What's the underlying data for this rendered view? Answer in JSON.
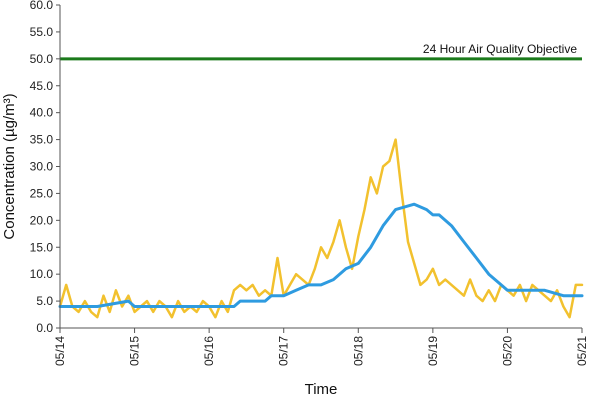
{
  "chart_data": {
    "type": "line",
    "title": "",
    "xlabel": "Time",
    "ylabel": "Concentration (µg/m³)",
    "ylim": [
      0,
      60
    ],
    "yticks": [
      "0.0",
      "5.0",
      "10.0",
      "15.0",
      "20.0",
      "25.0",
      "30.0",
      "35.0",
      "40.0",
      "45.0",
      "50.0",
      "55.0",
      "60.0"
    ],
    "xlim": [
      "05/14",
      "05/21"
    ],
    "xticks": [
      "05/14",
      "05/15",
      "05/16",
      "05/17",
      "05/18",
      "05/19",
      "05/20",
      "05/21"
    ],
    "grid": false,
    "legend": "none",
    "colors": {
      "hourly": "#F2C12E",
      "rolling": "#2E9BE0",
      "objective": "#1B7A1B",
      "axis": "#555555"
    },
    "annotation": {
      "text": "24 Hour Air Quality Objective",
      "y": 50
    },
    "objective_line": {
      "y": 50
    },
    "series": [
      {
        "x": [
          "05/14 00:00",
          "05/14 02:00",
          "05/14 04:00",
          "05/14 06:00",
          "05/14 08:00",
          "05/14 10:00",
          "05/14 12:00",
          "05/14 14:00",
          "05/14 16:00",
          "05/14 18:00",
          "05/14 20:00",
          "05/14 22:00",
          "05/15 00:00",
          "05/15 02:00",
          "05/15 04:00",
          "05/15 06:00",
          "05/15 08:00",
          "05/15 10:00",
          "05/15 12:00",
          "05/15 14:00",
          "05/15 16:00",
          "05/15 18:00",
          "05/15 20:00",
          "05/15 22:00",
          "05/16 00:00",
          "05/16 02:00",
          "05/16 04:00",
          "05/16 06:00",
          "05/16 08:00",
          "05/16 10:00",
          "05/16 12:00",
          "05/16 14:00",
          "05/16 16:00",
          "05/16 18:00",
          "05/16 20:00",
          "05/16 22:00",
          "05/17 00:00",
          "05/17 02:00",
          "05/17 04:00",
          "05/17 06:00",
          "05/17 08:00",
          "05/17 10:00",
          "05/17 12:00",
          "05/17 14:00",
          "05/17 16:00",
          "05/17 18:00",
          "05/17 20:00",
          "05/17 22:00",
          "05/18 00:00",
          "05/18 02:00",
          "05/18 04:00",
          "05/18 06:00",
          "05/18 08:00",
          "05/18 10:00",
          "05/18 12:00",
          "05/18 14:00",
          "05/18 16:00",
          "05/18 18:00",
          "05/18 20:00",
          "05/18 22:00",
          "05/19 00:00",
          "05/19 02:00",
          "05/19 04:00",
          "05/19 06:00",
          "05/19 08:00",
          "05/19 10:00",
          "05/19 12:00",
          "05/19 14:00",
          "05/19 16:00",
          "05/19 18:00",
          "05/19 20:00",
          "05/19 22:00",
          "05/20 00:00",
          "05/20 02:00",
          "05/20 04:00",
          "05/20 06:00",
          "05/20 08:00",
          "05/20 10:00",
          "05/20 12:00",
          "05/20 14:00",
          "05/20 16:00",
          "05/20 18:00",
          "05/20 20:00",
          "05/20 22:00",
          "05/21 00:00"
        ],
        "values": [
          4.0,
          8.0,
          4.0,
          3.0,
          5.0,
          3.0,
          2.0,
          6.0,
          3.0,
          7.0,
          4.0,
          6.0,
          3.0,
          4.0,
          5.0,
          3.0,
          5.0,
          4.0,
          2.0,
          5.0,
          3.0,
          4.0,
          3.0,
          5.0,
          4.0,
          2.0,
          5.0,
          3.0,
          7.0,
          8.0,
          7.0,
          8.0,
          6.0,
          7.0,
          6.0,
          13.0,
          6.0,
          8.0,
          10.0,
          9.0,
          8.0,
          11.0,
          15.0,
          13.0,
          16.0,
          20.0,
          15.0,
          11.0,
          17.0,
          22.0,
          28.0,
          25.0,
          30.0,
          31.0,
          35.0,
          25.0,
          16.0,
          12.0,
          8.0,
          9.0,
          11.0,
          8.0,
          9.0,
          8.0,
          7.0,
          6.0,
          9.0,
          6.0,
          5.0,
          7.0,
          5.0,
          8.0,
          7.0,
          6.0,
          8.0,
          5.0,
          8.0,
          7.0,
          6.0,
          5.0,
          7.0,
          4.0,
          2.0,
          8.0,
          8.0
        ]
      },
      {
        "x": [
          "05/14 00:00",
          "05/14 12:00",
          "05/14 12:00",
          "05/14 22:00",
          "05/15 00:00",
          "05/15 06:00",
          "05/15 12:00",
          "05/15 18:00",
          "05/16 00:00",
          "05/16 08:00",
          "05/16 10:00",
          "05/16 18:00",
          "05/16 20:00",
          "05/17 00:00",
          "05/17 04:00",
          "05/17 08:00",
          "05/17 12:00",
          "05/17 16:00",
          "05/17 20:00",
          "05/18 00:00",
          "05/18 04:00",
          "05/18 08:00",
          "05/18 12:00",
          "05/18 18:00",
          "05/18 22:00",
          "05/19 00:00",
          "05/19 02:00",
          "05/19 06:00",
          "05/19 10:00",
          "05/19 14:00",
          "05/19 18:00",
          "05/19 22:00",
          "05/20 00:00",
          "05/20 06:00",
          "05/20 12:00",
          "05/20 18:00",
          "05/21 00:00"
        ],
        "values": [
          4.0,
          4.0,
          4.0,
          5.0,
          4.0,
          4.0,
          4.0,
          4.0,
          4.0,
          4.0,
          5.0,
          5.0,
          6.0,
          6.0,
          7.0,
          8.0,
          8.0,
          9.0,
          11.0,
          12.0,
          15.0,
          19.0,
          22.0,
          23.0,
          22.0,
          21.0,
          21.0,
          19.0,
          16.0,
          13.0,
          10.0,
          8.0,
          7.0,
          7.0,
          7.0,
          6.0,
          6.0
        ]
      }
    ]
  }
}
